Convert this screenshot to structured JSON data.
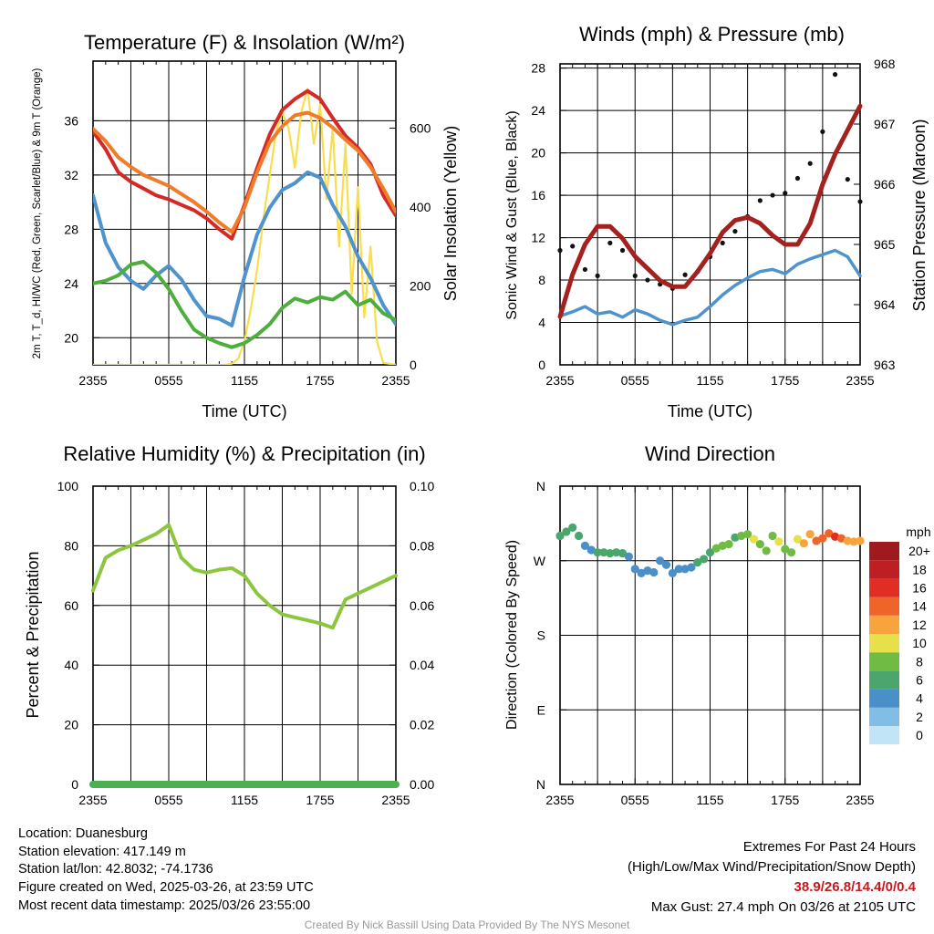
{
  "colors": {
    "red": "#d42a27",
    "orange": "#f07c2a",
    "blue": "#4f93cc",
    "green": "#4caf3c",
    "yellow": "#f8de4f",
    "maroon": "#a3211f",
    "black": "#111111",
    "rh": "#8cc63f",
    "precip": "#4caf50"
  },
  "chart_data": [
    {
      "id": "temperature",
      "type": "line",
      "title": "Temperature (F) & Insolation (W/m²)",
      "xlabel": "Time (UTC)",
      "ylabel": "2m T, T_d, HI/WC (Red, Green, Scarlet/Blue) & 9m T (Orange)",
      "y2label": "Solar Insolation (Yellow)",
      "x_ticks": [
        "2355",
        "0555",
        "1155",
        "1755",
        "2355"
      ],
      "y_ticks": [
        20,
        24,
        28,
        32,
        36
      ],
      "y2_ticks": [
        0,
        200,
        400,
        600
      ],
      "ylim": [
        18,
        40.4
      ],
      "y2lim": [
        0,
        770
      ],
      "grid": true,
      "series": [
        {
          "name": "2m T",
          "color": "red",
          "axis": "left",
          "x": [
            0,
            1,
            2,
            3,
            4,
            5,
            6,
            7,
            8,
            9,
            10,
            11,
            12,
            13,
            14,
            15,
            16,
            17,
            18,
            19,
            20,
            21,
            22,
            23,
            24
          ],
          "values": [
            35.2,
            33.9,
            32.2,
            31.5,
            31.0,
            30.5,
            30.2,
            29.8,
            29.4,
            28.8,
            28.0,
            27.3,
            29.8,
            32.5,
            35.0,
            36.8,
            37.6,
            38.2,
            37.6,
            36.2,
            34.9,
            34.0,
            32.8,
            30.5,
            29.0
          ]
        },
        {
          "name": "9m T",
          "color": "orange",
          "axis": "left",
          "x": [
            0,
            1,
            2,
            3,
            4,
            5,
            6,
            7,
            8,
            9,
            10,
            11,
            12,
            13,
            14,
            15,
            16,
            17,
            18,
            19,
            20,
            21,
            22,
            23,
            24
          ],
          "values": [
            35.4,
            34.5,
            33.3,
            32.6,
            32.0,
            31.6,
            31.2,
            30.6,
            30.0,
            29.3,
            28.5,
            27.8,
            29.6,
            32.2,
            34.4,
            35.6,
            36.4,
            36.6,
            36.2,
            35.5,
            34.6,
            33.8,
            32.6,
            31.0,
            29.3
          ]
        },
        {
          "name": "T_d",
          "color": "green",
          "axis": "left",
          "x": [
            0,
            1,
            2,
            3,
            4,
            5,
            6,
            7,
            8,
            9,
            10,
            11,
            12,
            13,
            14,
            15,
            16,
            17,
            18,
            19,
            20,
            21,
            22,
            23,
            24
          ],
          "values": [
            24.0,
            24.2,
            24.6,
            25.4,
            25.6,
            24.8,
            23.6,
            22.0,
            20.6,
            20.0,
            19.6,
            19.3,
            19.6,
            20.2,
            21.0,
            22.2,
            22.9,
            22.6,
            23.0,
            22.8,
            23.4,
            22.4,
            22.8,
            21.8,
            21.3
          ]
        },
        {
          "name": "HI/WC",
          "color": "blue",
          "axis": "left",
          "x": [
            0,
            1,
            2,
            3,
            4,
            5,
            6,
            7,
            8,
            9,
            10,
            11,
            12,
            13,
            14,
            15,
            16,
            17,
            18,
            19,
            20,
            21,
            22,
            23,
            24
          ],
          "values": [
            30.5,
            27.0,
            25.2,
            24.2,
            23.6,
            24.6,
            25.3,
            24.3,
            22.8,
            21.6,
            21.4,
            20.9,
            24.5,
            27.6,
            29.6,
            30.9,
            31.4,
            32.2,
            31.8,
            29.8,
            28.2,
            26.0,
            24.4,
            22.4,
            21.0
          ]
        },
        {
          "name": "Solar Insolation",
          "color": "yellow",
          "axis": "right",
          "x": [
            0,
            10.5,
            11,
            11.5,
            12,
            12.5,
            13,
            13.5,
            14,
            14.5,
            15,
            15.5,
            16,
            16.5,
            17,
            17.5,
            18,
            18.5,
            19,
            19.5,
            20,
            20.5,
            21,
            21.5,
            22,
            22.5,
            23,
            24
          ],
          "values": [
            0,
            0,
            3,
            15,
            60,
            140,
            240,
            370,
            480,
            590,
            640,
            600,
            500,
            640,
            700,
            560,
            660,
            420,
            600,
            300,
            560,
            180,
            450,
            120,
            300,
            60,
            5,
            0
          ]
        }
      ]
    },
    {
      "id": "winds",
      "type": "line",
      "title": "Winds (mph) & Pressure (mb)",
      "xlabel": "Time (UTC)",
      "ylabel": "Sonic Wind & Gust (Blue, Black)",
      "y2label": "Station Pressure (Maroon)",
      "x_ticks": [
        "2355",
        "0555",
        "1155",
        "1755",
        "2355"
      ],
      "y_ticks": [
        0,
        4,
        8,
        12,
        16,
        20,
        24,
        28
      ],
      "y2_ticks": [
        963,
        964,
        965,
        966,
        967,
        968
      ],
      "ylim": [
        0,
        28.4
      ],
      "y2lim": [
        963,
        968
      ],
      "grid": true,
      "series": [
        {
          "name": "Sonic Wind",
          "color": "blue",
          "axis": "left",
          "x": [
            0,
            1,
            2,
            3,
            4,
            5,
            6,
            7,
            8,
            9,
            10,
            11,
            12,
            13,
            14,
            15,
            16,
            17,
            18,
            19,
            20,
            21,
            22,
            23,
            24
          ],
          "values": [
            4.6,
            5.0,
            5.5,
            4.8,
            5.0,
            4.5,
            5.2,
            4.8,
            4.2,
            3.8,
            4.2,
            4.5,
            5.5,
            6.6,
            7.5,
            8.2,
            8.8,
            9.0,
            8.6,
            9.5,
            10.0,
            10.4,
            10.8,
            10.2,
            8.4
          ]
        },
        {
          "name": "Gust",
          "color": "black",
          "axis": "left",
          "x": [
            0,
            1,
            2,
            3,
            4,
            5,
            6,
            7,
            8,
            9,
            10,
            11,
            12,
            13,
            14,
            15,
            16,
            17,
            18,
            19,
            20,
            21,
            22,
            23,
            24
          ],
          "values": [
            10.8,
            11.2,
            9.0,
            8.4,
            11.5,
            10.8,
            8.4,
            8.0,
            7.6,
            7.2,
            8.5,
            8.8,
            10.2,
            11.5,
            12.6,
            14.0,
            15.5,
            16.0,
            16.2,
            17.6,
            19.0,
            22.0,
            27.4,
            17.5,
            15.4
          ]
        },
        {
          "name": "Station Pressure",
          "color": "maroon",
          "axis": "right",
          "x": [
            0,
            1,
            2,
            3,
            4,
            5,
            6,
            7,
            8,
            9,
            10,
            11,
            12,
            13,
            14,
            15,
            16,
            17,
            18,
            19,
            20,
            21,
            22,
            23,
            24
          ],
          "values": [
            963.8,
            964.5,
            965.0,
            965.3,
            965.3,
            965.1,
            964.8,
            964.6,
            964.4,
            964.3,
            964.3,
            964.55,
            964.85,
            965.2,
            965.4,
            965.45,
            965.35,
            965.15,
            965.0,
            965.0,
            965.35,
            966.0,
            966.5,
            966.9,
            967.3
          ]
        }
      ]
    },
    {
      "id": "humidity",
      "type": "line",
      "title": "Relative Humidity (%) & Precipitation (in)",
      "xlabel": "",
      "ylabel": "Percent & Precipitation",
      "x_ticks": [
        "2355",
        "0555",
        "1155",
        "1755",
        "2355"
      ],
      "y_ticks": [
        0,
        20,
        40,
        60,
        80,
        100
      ],
      "y2_ticks": [
        "0.00",
        "0.02",
        "0.04",
        "0.06",
        "0.08",
        "0.10"
      ],
      "ylim": [
        0,
        100
      ],
      "y2lim": [
        0,
        0.1
      ],
      "grid": true,
      "series": [
        {
          "name": "Relative Humidity",
          "color": "rh",
          "axis": "left",
          "x": [
            0,
            1,
            2,
            3,
            4,
            5,
            6,
            7,
            8,
            9,
            10,
            11,
            12,
            13,
            14,
            15,
            16,
            17,
            18,
            19,
            20,
            21,
            22,
            23,
            24
          ],
          "values": [
            65,
            76,
            78.5,
            80,
            82,
            84,
            87,
            76,
            72,
            71,
            72,
            72.5,
            70,
            64,
            60,
            57,
            56,
            55,
            54,
            52.5,
            62,
            64,
            66,
            68,
            70
          ]
        },
        {
          "name": "Precipitation",
          "color": "precip",
          "axis": "right",
          "x": [
            0,
            24
          ],
          "values": [
            0,
            0
          ]
        }
      ]
    },
    {
      "id": "wind-direction",
      "type": "scatter",
      "title": "Wind Direction",
      "xlabel": "",
      "ylabel": "Direction (Colored By Speed)",
      "x_ticks": [
        "2355",
        "0555",
        "1155",
        "1755",
        "2355"
      ],
      "y_ticks": [
        "N",
        "W",
        "S",
        "E",
        "N"
      ],
      "legend_title": "mph",
      "legend_labels": [
        "0",
        "2",
        "4",
        "6",
        "8",
        "10",
        "12",
        "14",
        "16",
        "18",
        "20+"
      ],
      "legend_colors": [
        "#c2e4f7",
        "#82bde6",
        "#4b8fc8",
        "#4aa66c",
        "#70bb44",
        "#e6e04a",
        "#f7a43c",
        "#ef6428",
        "#e02e24",
        "#bd1f22",
        "#9e1a1c"
      ],
      "grid": true,
      "x": [
        0,
        0.5,
        1,
        1.5,
        2,
        2.5,
        3,
        3.5,
        4,
        4.5,
        5,
        5.5,
        6,
        6.5,
        7,
        7.5,
        8,
        8.5,
        9,
        9.5,
        10,
        10.5,
        11,
        11.5,
        12,
        12.5,
        13,
        13.5,
        14,
        14.5,
        15,
        15.5,
        16,
        16.5,
        17,
        17.5,
        18,
        18.5,
        19,
        19.5,
        20,
        20.5,
        21,
        21.5,
        22,
        22.5,
        23,
        23.5,
        24
      ],
      "direction_deg": [
        300,
        305,
        310,
        300,
        288,
        283,
        280,
        280,
        279,
        280,
        279,
        275,
        260,
        255,
        258,
        256,
        270,
        265,
        255,
        260,
        260,
        262,
        268,
        272,
        280,
        285,
        288,
        290,
        298,
        300,
        302,
        296,
        290,
        282,
        300,
        293,
        284,
        280,
        296,
        291,
        302,
        294,
        297,
        303,
        299,
        297,
        294,
        293,
        294
      ],
      "speed_mph": [
        5,
        5.5,
        6,
        5,
        4.5,
        4,
        5,
        5.5,
        5,
        6,
        5,
        4.5,
        3.5,
        3,
        4,
        3.5,
        4,
        3.5,
        3,
        4,
        4,
        4.5,
        5,
        5.5,
        6,
        7,
        7,
        8,
        6,
        7,
        8,
        9,
        7,
        8,
        7,
        9,
        7,
        7,
        10,
        11,
        12,
        13,
        14,
        14,
        15,
        14,
        12,
        12,
        11
      ]
    }
  ],
  "info": {
    "location": "Location: Duanesburg",
    "elevation": "Station elevation: 417.149 m",
    "latlon": "Station lat/lon: 42.8032; -74.1736",
    "created": "Figure created on Wed, 2025-03-26, at 23:59 UTC",
    "timestamp": "Most recent data timestamp: 2025/03/26 23:55:00"
  },
  "extremes": {
    "heading": "Extremes For Past 24 Hours",
    "subheading": "(High/Low/Max Wind/Precipitation/Snow Depth)",
    "values": "38.9/26.8/14.4/0/0.4",
    "max_gust": "Max Gust: 27.4 mph On 03/26 at 2105 UTC"
  },
  "credit": "Created By Nick Bassill Using Data Provided By The NYS Mesonet"
}
